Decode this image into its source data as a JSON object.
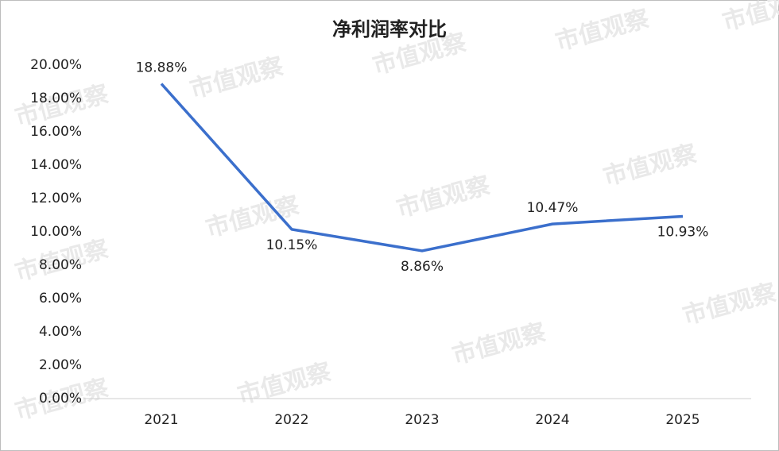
{
  "chart_data": {
    "type": "line",
    "title": "净利润率对比",
    "categories": [
      "2021",
      "2022",
      "2023",
      "2024",
      "2025"
    ],
    "series": [
      {
        "color": "#3b6fcc",
        "values": [
          18.88,
          10.15,
          8.86,
          10.47,
          10.93
        ],
        "value_labels": [
          "18.88%",
          "10.15%",
          "8.86%",
          "10.47%",
          "10.93%"
        ]
      }
    ],
    "ylim": [
      0,
      20
    ],
    "yticks": [
      {
        "value": 0,
        "label": "0.00%"
      },
      {
        "value": 2,
        "label": "2.00%"
      },
      {
        "value": 4,
        "label": "4.00%"
      },
      {
        "value": 6,
        "label": "6.00%"
      },
      {
        "value": 8,
        "label": "8.00%"
      },
      {
        "value": 10,
        "label": "10.00%"
      },
      {
        "value": 12,
        "label": "12.00%"
      },
      {
        "value": 14,
        "label": "14.00%"
      },
      {
        "value": 16,
        "label": "16.00%"
      },
      {
        "value": 18,
        "label": "18.00%"
      },
      {
        "value": 20,
        "label": "20.00%"
      }
    ],
    "grid": false,
    "watermark": "市值观察"
  }
}
